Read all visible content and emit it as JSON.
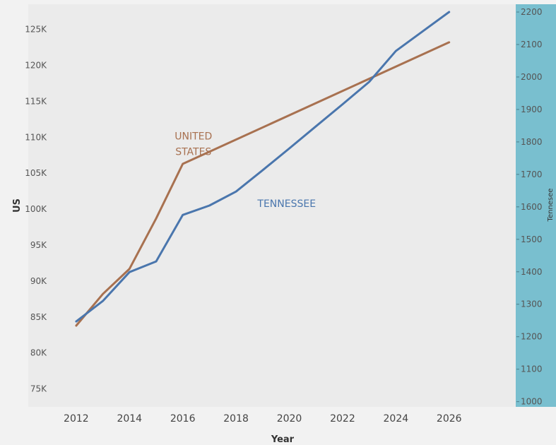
{
  "chart_data": {
    "type": "line",
    "xlabel": "Year",
    "ylabel": "US",
    "y2label": "Tennesee",
    "xlim": [
      2010.2,
      2028.5
    ],
    "ylim": [
      72500,
      128500
    ],
    "y2lim": [
      984,
      2224
    ],
    "x_ticks": [
      2012,
      2014,
      2016,
      2018,
      2020,
      2022,
      2024,
      2026
    ],
    "y_ticks": [
      {
        "value": 75000,
        "label": "75K"
      },
      {
        "value": 80000,
        "label": "80K"
      },
      {
        "value": 85000,
        "label": "85K"
      },
      {
        "value": 90000,
        "label": "90K"
      },
      {
        "value": 95000,
        "label": "95K"
      },
      {
        "value": 100000,
        "label": "100K"
      },
      {
        "value": 105000,
        "label": "105K"
      },
      {
        "value": 110000,
        "label": "110K"
      },
      {
        "value": 115000,
        "label": "115K"
      },
      {
        "value": 120000,
        "label": "120K"
      },
      {
        "value": 125000,
        "label": "125K"
      }
    ],
    "y2_ticks": [
      1000,
      1100,
      1200,
      1300,
      1400,
      1500,
      1600,
      1700,
      1800,
      1900,
      2000,
      2100,
      2200
    ],
    "grid": false,
    "series": [
      {
        "name": "UNITED STATES",
        "axis": "left",
        "color": "#a87150",
        "x": [
          2012,
          2013,
          2014,
          2015,
          2016,
          2026
        ],
        "y": [
          83800,
          88200,
          91700,
          98700,
          106300,
          123200
        ]
      },
      {
        "name": "TENNESSEE",
        "axis": "right",
        "color": "#4a76ad",
        "x": [
          2012,
          2013,
          2014,
          2015,
          2016,
          2017,
          2018,
          2019,
          2020,
          2021,
          2022,
          2023,
          2024,
          2025,
          2026
        ],
        "y": [
          1247,
          1310,
          1399,
          1432,
          1575,
          1604,
          1647,
          1713,
          1780,
          1848,
          1916,
          1985,
          2080,
          2140,
          2200
        ]
      }
    ],
    "annotations": [
      {
        "lines": [
          "UNITED",
          "STATES"
        ],
        "color": "#a87150"
      },
      {
        "lines": [
          "TENNESSEE"
        ],
        "color": "#4a76ad"
      }
    ],
    "colors": {
      "plot_background": "#ebebeb",
      "right_axis_background": "#79bfcf",
      "page_background": "#ffffff"
    }
  }
}
